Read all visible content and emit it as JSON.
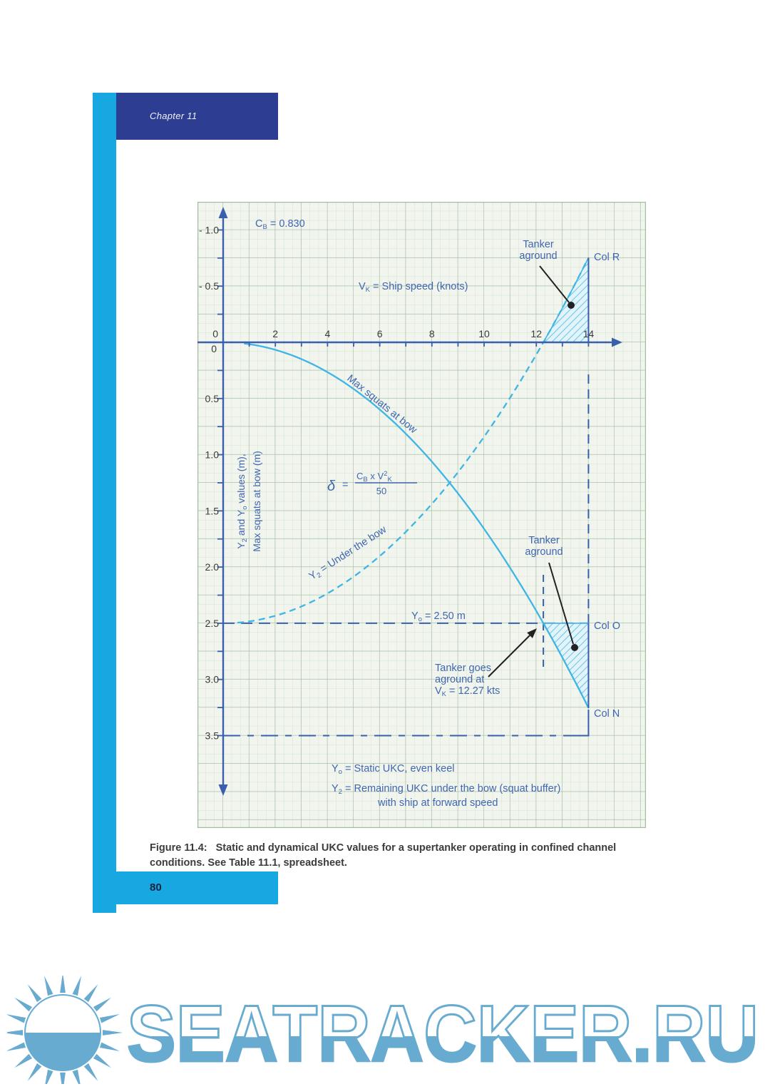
{
  "page": {
    "chapter_label": "Chapter 11",
    "page_number": "80",
    "caption": {
      "label": "Figure 11.4:",
      "text": "Static and dynamical UKC values for a supertanker operating in confined channel conditions. See Table 11.1, spreadsheet."
    }
  },
  "watermark": {
    "text": "SEATRACKER.RU",
    "icon": "sun-over-sea",
    "color": "#68abd1"
  },
  "colors": {
    "accent_cyan": "#18a8e1",
    "header_navy": "#2d3d92",
    "axis_blue": "#3a5fad",
    "annotation_blue": "#4066b0",
    "curve_cyan": "#3fb5e5",
    "tick_text": "#3a3a3a",
    "grid_major": "#9fbc9e",
    "grid_minor": "#d6e3d3",
    "paper": "#f1f5ee",
    "watermark_blue": "#68abd1"
  },
  "chart_data": {
    "type": "line",
    "title": "",
    "cb": 0.83,
    "static_ukc_m": 2.5,
    "aground_speed_kts": 12.27,
    "vmax": 14,
    "x_axis": {
      "ticks": [
        {
          "v": 0,
          "label": "0"
        },
        {
          "v": 2,
          "label": "2"
        },
        {
          "v": 4,
          "label": "4"
        },
        {
          "v": 6,
          "label": "6"
        },
        {
          "v": 8,
          "label": "8"
        },
        {
          "v": 10,
          "label": "10"
        },
        {
          "v": 12,
          "label": "12"
        },
        {
          "v": 14,
          "label": "14"
        }
      ],
      "minor_tick_step": 1,
      "range": [
        0,
        15.2
      ]
    },
    "y_axis": {
      "inverted": true,
      "ticks": [
        {
          "v": -1.0,
          "label": "- 1.0"
        },
        {
          "v": -0.5,
          "label": "- 0.5"
        },
        {
          "v": 0,
          "label": "0"
        },
        {
          "v": 0.5,
          "label": "0.5"
        },
        {
          "v": 1.0,
          "label": "1.0"
        },
        {
          "v": 1.5,
          "label": "1.5"
        },
        {
          "v": 2.0,
          "label": "2.0"
        },
        {
          "v": 2.5,
          "label": "2.5"
        },
        {
          "v": 3.0,
          "label": "3.0"
        },
        {
          "v": 3.5,
          "label": "3.5"
        }
      ],
      "minor_tick_step": 0.25,
      "range": [
        -1.25,
        4.3
      ]
    },
    "series": [
      {
        "name": "Max squats at bow",
        "style": "solid",
        "x": [
          0,
          1,
          2,
          3,
          4,
          5,
          6,
          7,
          8,
          9,
          10,
          11,
          12,
          12.27,
          13,
          14
        ],
        "values": [
          0,
          0.02,
          0.07,
          0.15,
          0.27,
          0.42,
          0.6,
          0.81,
          1.06,
          1.34,
          1.66,
          2.01,
          2.39,
          2.5,
          2.81,
          3.25
        ]
      },
      {
        "name": "Y2 = Under the bow",
        "style": "dashed",
        "x": [
          0,
          1,
          2,
          3,
          4,
          5,
          6,
          7,
          8,
          9,
          10,
          11,
          12,
          12.27,
          13,
          14
        ],
        "values": [
          2.5,
          2.48,
          2.43,
          2.35,
          2.23,
          2.08,
          1.9,
          1.69,
          1.44,
          1.16,
          0.84,
          0.49,
          0.11,
          0.0,
          -0.31,
          -0.75
        ]
      }
    ],
    "labels": {
      "cb": {
        "pre": "C",
        "sub": "B",
        "post": " = 0.830"
      },
      "vk": {
        "pre": "V",
        "sub": "K",
        "post": " = Ship speed (knots)"
      },
      "formula": {
        "lhs": "δ",
        "eq": "=",
        "num": {
          "pre": "C",
          "sub1": "B",
          "mid": " x V",
          "sup": "2",
          "sub2": "K"
        },
        "den": "50"
      },
      "squat_curve": "Max squats at bow",
      "y2_curve": {
        "pre": "Y",
        "sub": "2",
        "post": " = Under the bow"
      },
      "y0_line": {
        "pre": "Y",
        "sub": "o",
        "post": " = 2.50 m"
      },
      "axis_line1": {
        "p1": "Y",
        "s1": "2",
        "p2": " and Y",
        "s2": "o",
        "p3": " values (m),"
      },
      "axis_line2": "Max squats at bow (m)",
      "tanker_aground_l1": "Tanker",
      "tanker_aground_l2": "aground",
      "col_r": "Col R",
      "col_o": "Col O",
      "col_n": "Col N",
      "goes_aground_l1": "Tanker goes",
      "goes_aground_l2": "aground at",
      "goes_aground_l3": {
        "pre": "V",
        "sub": "K",
        "post": " = 12.27 kts"
      },
      "note1": {
        "pre": "Y",
        "sub": "o",
        "post": " = Static UKC, even keel"
      },
      "note2": {
        "pre": "Y",
        "sub": "2",
        "post": " = Remaining UKC under the bow (squat buffer)"
      },
      "note3": "with ship at forward speed"
    }
  }
}
